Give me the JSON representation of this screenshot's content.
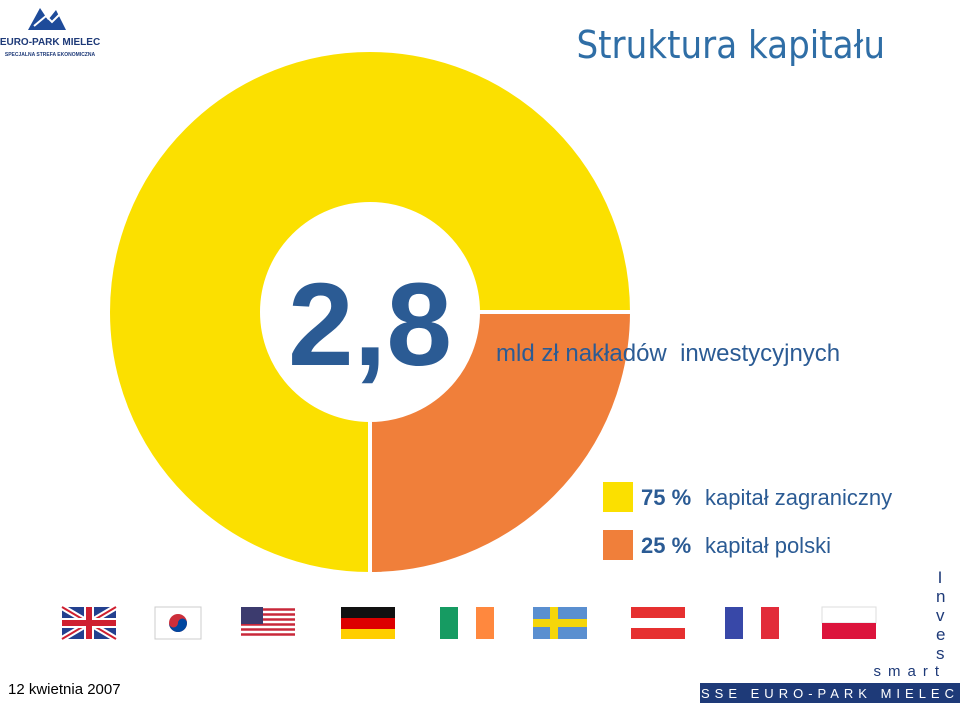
{
  "chart_data": {
    "type": "donut",
    "title": "Struktura kapitału",
    "annotations": [
      "2,8",
      "mld zł nakładów  inwestycyjnych"
    ],
    "categories": [
      "kapitał zagraniczny",
      "kapitał polski"
    ],
    "values": [
      75,
      25
    ],
    "value_labels": [
      "75 %",
      "25 %"
    ],
    "colors": [
      "#fbe000",
      "#f07f3a"
    ]
  },
  "logo": {
    "name": "EURO-PARK MIELEC",
    "subtitle": "SPECJALNA  STREFA  EKONOMICZNA"
  },
  "footer": {
    "date": "12 kwietnia 2007",
    "brand_vertical": "Inves",
    "brand_smart": "smart",
    "brand_name": "SSE EURO-PARK MIELEC"
  }
}
